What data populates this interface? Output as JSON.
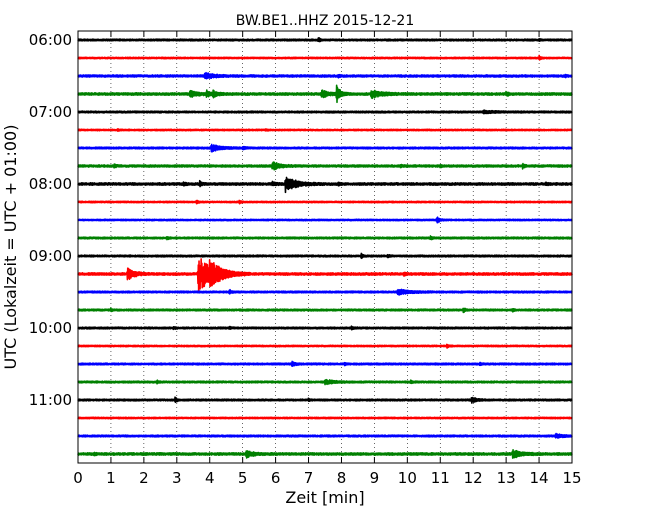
{
  "chart_data": {
    "type": "line",
    "title": "BW.BE1..HHZ 2015-12-21",
    "xlabel": "Zeit  [min]",
    "ylabel": "UTC (Lokalzeit = UTC + 01:00)",
    "xlim": [
      0,
      15
    ],
    "x_ticks": [
      "0",
      "1",
      "2",
      "3",
      "4",
      "5",
      "6",
      "7",
      "8",
      "9",
      "10",
      "11",
      "12",
      "13",
      "14",
      "15"
    ],
    "y_tick_labels": [
      "06:00",
      "07:00",
      "08:00",
      "09:00",
      "10:00",
      "11:00"
    ],
    "grid": "vertical-dotted",
    "colors": [
      "#000000",
      "#ff0000",
      "#0000ff",
      "#008000"
    ],
    "traces": [
      {
        "start": "06:00",
        "color": "#000000",
        "noise": 0.15,
        "events": [
          {
            "t": 7.3,
            "amp": 0.5,
            "dur": 0.05
          },
          {
            "t": 14.0,
            "amp": 0.25,
            "dur": 0.05
          }
        ]
      },
      {
        "start": "06:15",
        "color": "#ff0000",
        "noise": 0.12,
        "events": [
          {
            "t": 14.0,
            "amp": 0.5,
            "dur": 0.05
          }
        ]
      },
      {
        "start": "06:30",
        "color": "#0000ff",
        "noise": 0.18,
        "events": [
          {
            "t": 3.85,
            "amp": 0.7,
            "dur": 0.25
          },
          {
            "t": 7.9,
            "amp": 0.3,
            "dur": 0.05
          },
          {
            "t": 14.8,
            "amp": 0.3,
            "dur": 0.04
          }
        ]
      },
      {
        "start": "06:45",
        "color": "#008000",
        "noise": 0.2,
        "events": [
          {
            "t": 3.4,
            "amp": 0.7,
            "dur": 0.2
          },
          {
            "t": 3.9,
            "amp": 0.8,
            "dur": 0.08
          },
          {
            "t": 4.1,
            "amp": 0.6,
            "dur": 0.15
          },
          {
            "t": 7.4,
            "amp": 0.8,
            "dur": 0.2
          },
          {
            "t": 7.85,
            "amp": 1.9,
            "dur": 0.1
          },
          {
            "t": 8.9,
            "amp": 0.9,
            "dur": 0.3
          },
          {
            "t": 13.0,
            "amp": 0.5,
            "dur": 0.06
          }
        ]
      },
      {
        "start": "07:00",
        "color": "#000000",
        "noise": 0.15,
        "events": [
          {
            "t": 12.3,
            "amp": 0.3,
            "dur": 0.3
          }
        ]
      },
      {
        "start": "07:15",
        "color": "#ff0000",
        "noise": 0.12,
        "events": [
          {
            "t": 1.2,
            "amp": 0.25,
            "dur": 0.05
          },
          {
            "t": 5.7,
            "amp": 0.25,
            "dur": 0.05
          }
        ]
      },
      {
        "start": "07:30",
        "color": "#0000ff",
        "noise": 0.15,
        "events": [
          {
            "t": 4.05,
            "amp": 0.9,
            "dur": 0.25
          },
          {
            "t": 5.0,
            "amp": 0.3,
            "dur": 0.08
          }
        ]
      },
      {
        "start": "07:45",
        "color": "#008000",
        "noise": 0.18,
        "events": [
          {
            "t": 1.1,
            "amp": 0.4,
            "dur": 0.05
          },
          {
            "t": 5.9,
            "amp": 1.0,
            "dur": 0.2
          },
          {
            "t": 9.8,
            "amp": 0.3,
            "dur": 0.05
          },
          {
            "t": 11.0,
            "amp": 0.3,
            "dur": 0.05
          },
          {
            "t": 13.5,
            "amp": 0.6,
            "dur": 0.05
          }
        ]
      },
      {
        "start": "08:00",
        "color": "#000000",
        "noise": 0.2,
        "events": [
          {
            "t": 3.2,
            "amp": 0.4,
            "dur": 0.05
          },
          {
            "t": 3.7,
            "amp": 0.7,
            "dur": 0.05
          },
          {
            "t": 5.9,
            "amp": 0.4,
            "dur": 0.1
          },
          {
            "t": 6.3,
            "amp": 1.7,
            "dur": 0.3
          },
          {
            "t": 7.9,
            "amp": 0.3,
            "dur": 0.05
          },
          {
            "t": 14.2,
            "amp": 0.3,
            "dur": 0.05
          }
        ]
      },
      {
        "start": "08:15",
        "color": "#ff0000",
        "noise": 0.12,
        "events": [
          {
            "t": 3.6,
            "amp": 0.4,
            "dur": 0.05
          },
          {
            "t": 4.9,
            "amp": 0.3,
            "dur": 0.05
          }
        ]
      },
      {
        "start": "08:30",
        "color": "#0000ff",
        "noise": 0.12,
        "events": [
          {
            "t": 10.9,
            "amp": 0.7,
            "dur": 0.08
          }
        ]
      },
      {
        "start": "08:45",
        "color": "#008000",
        "noise": 0.15,
        "events": [
          {
            "t": 2.7,
            "amp": 0.4,
            "dur": 0.05
          },
          {
            "t": 10.7,
            "amp": 0.4,
            "dur": 0.05
          }
        ]
      },
      {
        "start": "09:00",
        "color": "#000000",
        "noise": 0.15,
        "events": [
          {
            "t": 8.6,
            "amp": 0.5,
            "dur": 0.05
          },
          {
            "t": 9.4,
            "amp": 0.3,
            "dur": 0.05
          }
        ]
      },
      {
        "start": "09:15",
        "color": "#ff0000",
        "noise": 0.2,
        "events": [
          {
            "t": 1.5,
            "amp": 1.3,
            "dur": 0.2
          },
          {
            "t": 3.65,
            "amp": 4.2,
            "dur": 0.4
          },
          {
            "t": 4.0,
            "amp": 2.0,
            "dur": 0.3
          },
          {
            "t": 9.9,
            "amp": 0.3,
            "dur": 0.05
          }
        ]
      },
      {
        "start": "09:30",
        "color": "#0000ff",
        "noise": 0.15,
        "events": [
          {
            "t": 4.6,
            "amp": 0.5,
            "dur": 0.05
          },
          {
            "t": 9.7,
            "amp": 0.7,
            "dur": 0.3
          }
        ]
      },
      {
        "start": "09:45",
        "color": "#008000",
        "noise": 0.15,
        "events": [
          {
            "t": 1.0,
            "amp": 0.3,
            "dur": 0.05
          },
          {
            "t": 11.7,
            "amp": 0.6,
            "dur": 0.05
          },
          {
            "t": 13.2,
            "amp": 0.3,
            "dur": 0.05
          }
        ]
      },
      {
        "start": "10:00",
        "color": "#000000",
        "noise": 0.15,
        "events": [
          {
            "t": 2.9,
            "amp": 0.3,
            "dur": 0.05
          },
          {
            "t": 4.6,
            "amp": 0.3,
            "dur": 0.05
          },
          {
            "t": 8.3,
            "amp": 0.3,
            "dur": 0.05
          }
        ]
      },
      {
        "start": "10:15",
        "color": "#ff0000",
        "noise": 0.12,
        "events": [
          {
            "t": 11.2,
            "amp": 0.5,
            "dur": 0.05
          }
        ]
      },
      {
        "start": "10:30",
        "color": "#0000ff",
        "noise": 0.15,
        "events": [
          {
            "t": 6.5,
            "amp": 0.7,
            "dur": 0.08
          },
          {
            "t": 8.1,
            "amp": 0.3,
            "dur": 0.05
          },
          {
            "t": 12.2,
            "amp": 0.3,
            "dur": 0.05
          }
        ]
      },
      {
        "start": "10:45",
        "color": "#008000",
        "noise": 0.15,
        "events": [
          {
            "t": 2.4,
            "amp": 0.3,
            "dur": 0.05
          },
          {
            "t": 7.5,
            "amp": 0.5,
            "dur": 0.25
          },
          {
            "t": 10.1,
            "amp": 0.3,
            "dur": 0.05
          }
        ]
      },
      {
        "start": "11:00",
        "color": "#000000",
        "noise": 0.15,
        "events": [
          {
            "t": 2.95,
            "amp": 0.6,
            "dur": 0.05
          },
          {
            "t": 7.0,
            "amp": 0.3,
            "dur": 0.05
          },
          {
            "t": 11.95,
            "amp": 0.6,
            "dur": 0.15
          }
        ]
      },
      {
        "start": "11:15",
        "color": "#ff0000",
        "noise": 0.12,
        "events": []
      },
      {
        "start": "11:30",
        "color": "#0000ff",
        "noise": 0.15,
        "events": [
          {
            "t": 14.5,
            "amp": 0.5,
            "dur": 0.2
          }
        ]
      },
      {
        "start": "11:45",
        "color": "#008000",
        "noise": 0.2,
        "events": [
          {
            "t": 0.5,
            "amp": 0.4,
            "dur": 0.05
          },
          {
            "t": 5.1,
            "amp": 0.8,
            "dur": 0.2
          },
          {
            "t": 13.2,
            "amp": 0.9,
            "dur": 0.25
          }
        ]
      }
    ]
  }
}
